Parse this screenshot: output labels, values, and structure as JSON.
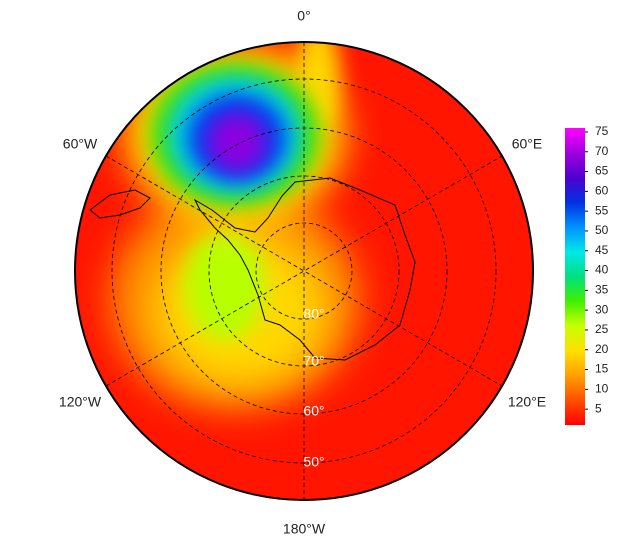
{
  "meridian_labels": [
    "0°",
    "60°E",
    "120°E",
    "180°W",
    "120°W",
    "60°W"
  ],
  "latitude_labels": [
    "80°",
    "70°",
    "60°",
    "50°"
  ],
  "colorbar": {
    "lim": [
      1,
      76
    ],
    "ticks": [
      5,
      10,
      15,
      20,
      25,
      30,
      35,
      40,
      45,
      50,
      55,
      60,
      65,
      70,
      75
    ],
    "colors": [
      "#ff0000",
      "#ff5000",
      "#ffa000",
      "#ffe000",
      "#c8ff00",
      "#40f000",
      "#00e080",
      "#00e8e8",
      "#0090ff",
      "#0030e0",
      "#5000d0",
      "#a000e0",
      "#ff00ff"
    ]
  }
}
